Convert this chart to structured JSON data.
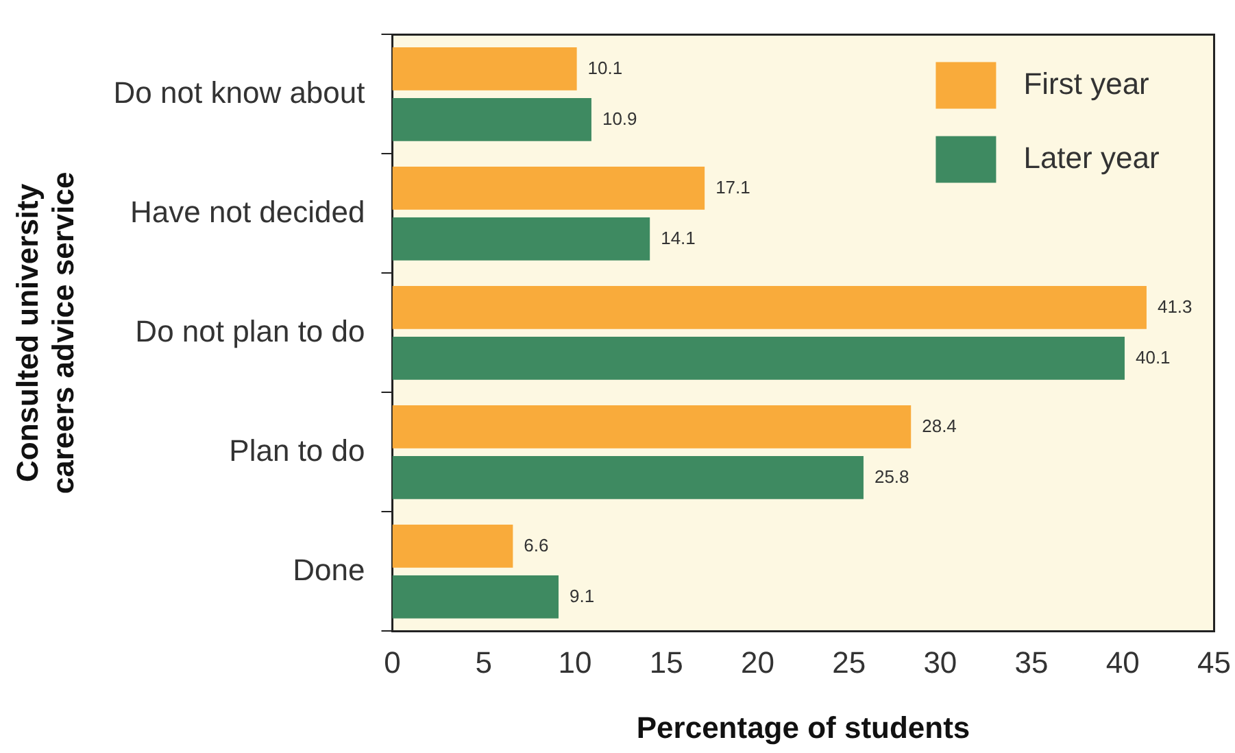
{
  "chart_data": {
    "type": "bar",
    "orientation": "horizontal",
    "xlabel": "Percentage of students",
    "ylabel": "Consulted university\ncareers advice service",
    "categories": [
      "Do not know about",
      "Have not decided",
      "Do not plan to do",
      "Plan to do",
      "Done"
    ],
    "series": [
      {
        "name": "First year",
        "color": "#f9ab3b",
        "values": [
          10.1,
          17.1,
          41.3,
          28.4,
          6.6
        ]
      },
      {
        "name": "Later year",
        "color": "#3e8a61",
        "values": [
          10.9,
          14.1,
          40.1,
          25.8,
          9.1
        ]
      }
    ],
    "xlim": [
      0,
      45
    ],
    "xticks": [
      0,
      5,
      10,
      15,
      20,
      25,
      30,
      35,
      40,
      45
    ],
    "grid": false,
    "legend": "top right",
    "data_labels": true
  }
}
